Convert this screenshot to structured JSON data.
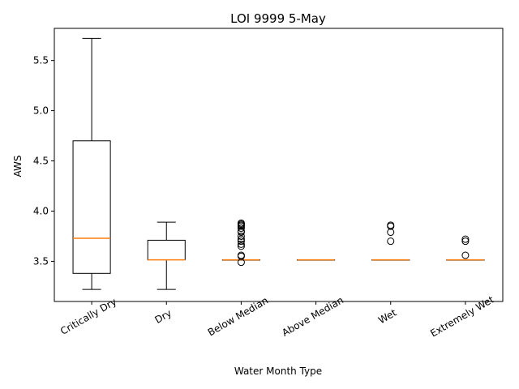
{
  "chart_data": {
    "type": "box",
    "title": "LOI 9999 5-May",
    "xlabel": "Water Month Type",
    "ylabel": "AWS",
    "ylim": [
      3.1,
      5.82
    ],
    "yticks": [
      "3.5",
      "4.0",
      "4.5",
      "5.0",
      "5.5"
    ],
    "grid": false,
    "colors": {
      "box": "#000000",
      "median": "#ff7f0e"
    },
    "boxes": [
      {
        "category": "Critically Dry",
        "whislo": 3.22,
        "q1": 3.38,
        "med": 3.73,
        "q3": 4.7,
        "whishi": 5.72,
        "fliers": []
      },
      {
        "category": "Dry",
        "whislo": 3.22,
        "q1": 3.515,
        "med": 3.515,
        "q3": 3.71,
        "whishi": 3.89,
        "fliers": []
      },
      {
        "category": "Below Median",
        "whislo": 3.515,
        "q1": 3.515,
        "med": 3.515,
        "q3": 3.515,
        "whishi": 3.515,
        "fliers": [
          3.49,
          3.55,
          3.56,
          3.65,
          3.67,
          3.7,
          3.72,
          3.75,
          3.79,
          3.8,
          3.83,
          3.85,
          3.86,
          3.87,
          3.88
        ]
      },
      {
        "category": "Above Median",
        "whislo": 3.515,
        "q1": 3.515,
        "med": 3.515,
        "q3": 3.515,
        "whishi": 3.515,
        "fliers": []
      },
      {
        "category": "Wet",
        "whislo": 3.515,
        "q1": 3.515,
        "med": 3.515,
        "q3": 3.515,
        "whishi": 3.515,
        "fliers": [
          3.7,
          3.79,
          3.85,
          3.86
        ]
      },
      {
        "category": "Extremely Wet",
        "whislo": 3.515,
        "q1": 3.515,
        "med": 3.515,
        "q3": 3.515,
        "whishi": 3.515,
        "fliers": [
          3.56,
          3.7,
          3.72
        ]
      }
    ]
  }
}
